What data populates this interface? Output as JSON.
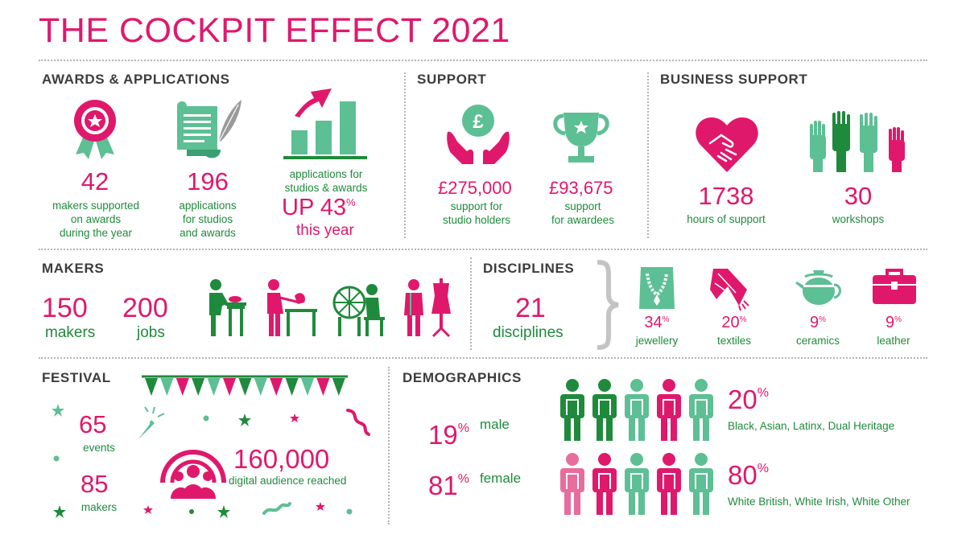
{
  "title": "THE COCKPIT EFFECT 2021",
  "colors": {
    "pink": "#e0186c",
    "green": "#1f8a3c",
    "mint": "#5dbf94",
    "grey": "#3c3c3c"
  },
  "awards": {
    "heading": "AWARDS & APPLICATIONS",
    "makers_value": "42",
    "makers_caption": [
      "makers supported",
      "on awards",
      "during the year"
    ],
    "applications_value": "196",
    "applications_caption": [
      "applications",
      "for studios",
      "and awards"
    ],
    "growth_caption": [
      "applications for",
      "studios & awards"
    ],
    "growth_value": "UP 43",
    "growth_pct": "%",
    "growth_suffix": "this year"
  },
  "support": {
    "heading": "SUPPORT",
    "studio_value": "£275,000",
    "studio_caption": [
      "support for",
      "studio holders"
    ],
    "awardees_value": "£93,675",
    "awardees_caption": [
      "support",
      "for awardees"
    ]
  },
  "business": {
    "heading": "BUSINESS SUPPORT",
    "hours_value": "1738",
    "hours_caption": "hours of support",
    "workshops_value": "30",
    "workshops_caption": "workshops"
  },
  "makers": {
    "heading": "MAKERS",
    "makers_value": "150",
    "makers_caption": "makers",
    "jobs_value": "200",
    "jobs_caption": "jobs"
  },
  "disciplines": {
    "heading": "DISCIPLINES",
    "count_value": "21",
    "count_caption": "disciplines",
    "items": [
      {
        "value": "34",
        "pct": "%",
        "label": "jewellery",
        "icon": "necklace-icon"
      },
      {
        "value": "20",
        "pct": "%",
        "label": "textiles",
        "icon": "scarf-icon"
      },
      {
        "value": "9",
        "pct": "%",
        "label": "ceramics",
        "icon": "teapot-icon"
      },
      {
        "value": "9",
        "pct": "%",
        "label": "leather",
        "icon": "briefcase-icon"
      }
    ]
  },
  "festival": {
    "heading": "FESTIVAL",
    "events_value": "65",
    "events_caption": "events",
    "makers_value": "85",
    "makers_caption": "makers",
    "audience_value": "160,000",
    "audience_caption": "digital audience reached"
  },
  "demographics": {
    "heading": "DEMOGRAPHICS",
    "male_value": "19",
    "male_pct": "%",
    "male_label": "male",
    "female_value": "81",
    "female_pct": "%",
    "female_label": "female",
    "group1_value": "20",
    "group1_pct": "%",
    "group1_label": "Black, Asian, Latinx, Dual Heritage",
    "group2_value": "80",
    "group2_pct": "%",
    "group2_label": "White British, White Irish, White Other"
  }
}
